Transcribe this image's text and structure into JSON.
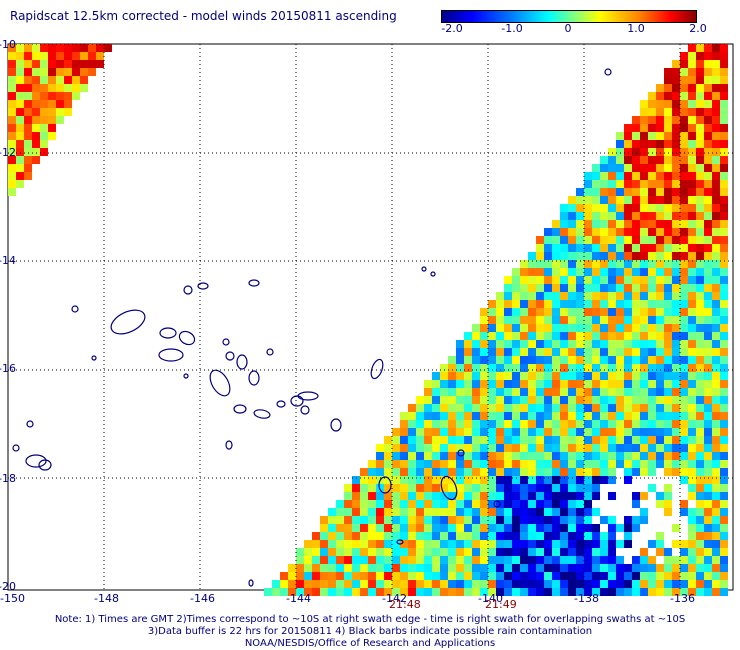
{
  "title": "Rapidscat 12.5km corrected - model winds 20150811 ascending",
  "colorbar": {
    "labels": [
      "-2.0",
      "-1.0",
      "0",
      "1.0",
      "2.0"
    ],
    "min": -2.0,
    "max": 2.0,
    "colors": [
      "#00008b",
      "#0000ff",
      "#00ffff",
      "#ffff00",
      "#ff0000",
      "#8b0000"
    ]
  },
  "lat_labels": [
    "-10",
    "-12",
    "-14",
    "-16",
    "-18",
    "-20"
  ],
  "lon_labels": [
    "-150",
    "-148",
    "-146",
    "-144",
    "-142",
    "-140",
    "-138",
    "-136"
  ],
  "times": [
    "21:48",
    "21:49"
  ],
  "notes": [
    "Note: 1) Times are GMT 2)Times correspond to ~10S at right swath edge - time is right swath for overlapping swaths at ~10S",
    "3)Data buffer is 22 hrs for 20150811 4) Black barbs indicate possible rain contamination",
    "NOAA/NESDIS/Office of Research and Applications"
  ]
}
